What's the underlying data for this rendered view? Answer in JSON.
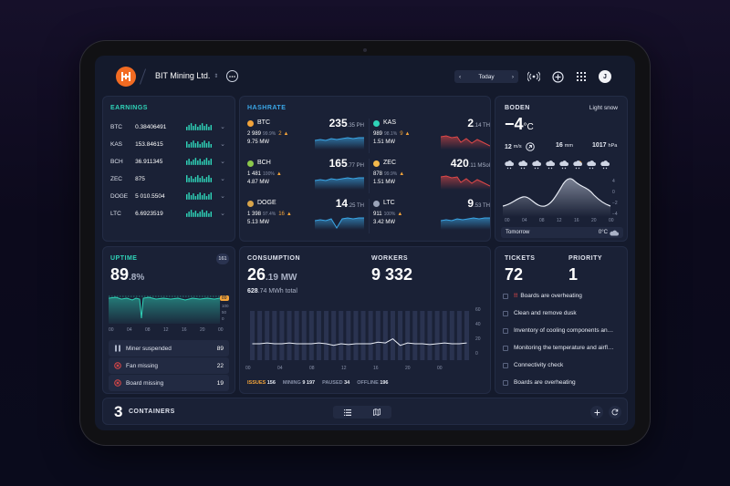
{
  "header": {
    "company": "BIT Mining Ltd.",
    "company_suffix": "⇕",
    "date_label": "Today",
    "avatar_initial": "J"
  },
  "earnings": {
    "title": "EARNINGS",
    "rows": [
      {
        "coin": "BTC",
        "value": "0.38406491"
      },
      {
        "coin": "KAS",
        "value": "153.84615"
      },
      {
        "coin": "BCH",
        "value": "36.911345"
      },
      {
        "coin": "ZEC",
        "value": "875"
      },
      {
        "coin": "DOGE",
        "value": "5 010.5504"
      },
      {
        "coin": "LTC",
        "value": "6.6923519"
      }
    ]
  },
  "hashrate": {
    "title": "HASHRATE",
    "cells": [
      {
        "coin": "BTC",
        "color": "#f2a33a",
        "main": "235",
        "dec": ".35 PH",
        "count": "2 989",
        "pct": "99.9%",
        "warn": "2",
        "power": "9.75 MW",
        "trend": "up"
      },
      {
        "coin": "KAS",
        "color": "#2fd3b8",
        "main": "2",
        "dec": ".14 TH",
        "count": "989",
        "pct": "98.1%",
        "warn": "9",
        "power": "1.51 MW",
        "trend": "down"
      },
      {
        "coin": "BCH",
        "color": "#8cc84b",
        "main": "165",
        "dec": ".77 PH",
        "count": "1 481",
        "pct": "100%",
        "warn": "",
        "power": "4.87 MW",
        "trend": "up"
      },
      {
        "coin": "ZEC",
        "color": "#f2b84b",
        "main": "420",
        "dec": ".11 MSol",
        "count": "878",
        "pct": "99.9%",
        "warn": "",
        "power": "1.51 MW",
        "trend": "down"
      },
      {
        "coin": "DOGE",
        "color": "#d8a44a",
        "main": "14",
        "dec": ".25 TH",
        "count": "1 398",
        "pct": "97.4%",
        "warn": "16",
        "power": "5.13 MW",
        "trend": "up"
      },
      {
        "coin": "LTC",
        "color": "#9aa3b8",
        "main": "9",
        "dec": ".53 TH",
        "count": "911",
        "pct": "100%",
        "warn": "",
        "power": "3.42 MW",
        "trend": "up"
      }
    ]
  },
  "weather": {
    "title": "BODEN",
    "condition": "Light snow",
    "temp": "−4",
    "unit": "°C",
    "wind": "12",
    "wind_unit": "m/s",
    "precip": "16",
    "precip_unit": "mm",
    "pressure": "1017",
    "pressure_unit": "hPa",
    "hours": [
      "00",
      "04",
      "08",
      "12",
      "16",
      "20",
      "00"
    ],
    "y_ticks": [
      "4",
      "0",
      "−2",
      "−4"
    ],
    "tomorrow_label": "Tomorrow",
    "tomorrow_temp": "0°C"
  },
  "uptime": {
    "title": "UPTIME",
    "badge": "161",
    "value": "89",
    "dec": ".8%",
    "marker": "89",
    "y_ticks": [
      "100",
      "50",
      "0"
    ],
    "x_ticks": [
      "00",
      "04",
      "08",
      "12",
      "16",
      "20",
      "00"
    ],
    "issues": [
      {
        "icon": "miner-suspended-icon",
        "label": "Miner suspended",
        "count": "89"
      },
      {
        "icon": "fan-missing-icon",
        "label": "Fan missing",
        "count": "22"
      },
      {
        "icon": "board-missing-icon",
        "label": "Board missing",
        "count": "19"
      }
    ]
  },
  "consumption": {
    "title": "CONSUMPTION",
    "value": "26",
    "dec": ".19 MW",
    "total_value": "628",
    "total_dec": ".74 MWh total",
    "y_ticks": [
      "60",
      "40",
      "20",
      "0"
    ],
    "x_ticks": [
      "00",
      "04",
      "08",
      "12",
      "16",
      "20",
      "00"
    ]
  },
  "workers": {
    "title": "WORKERS",
    "value": "9 332",
    "issues_label": "ISSUES",
    "issues_value": "156",
    "mining_label": "MINING",
    "mining_value": "9 197",
    "paused_label": "PAUSED",
    "paused_value": "34",
    "offline_label": "OFFLINE",
    "offline_value": "196"
  },
  "tickets": {
    "title": "TICKETS",
    "count": "72",
    "priority_title": "PRIORITY",
    "priority_count": "1",
    "priority_mark": "!!",
    "items": [
      "Boards are overheating",
      "Clean and remove dusk",
      "Inventory of cooling components an…",
      "Monitoring the temperature and airfl…",
      "Connectivity check",
      "Boards are overheating"
    ]
  },
  "containers": {
    "count": "3",
    "label": "CONTAINERS"
  },
  "colors": {
    "accent": "#2fd3b8",
    "blue": "#3aa6e6",
    "red": "#e04848",
    "orange": "#f2a33a"
  }
}
